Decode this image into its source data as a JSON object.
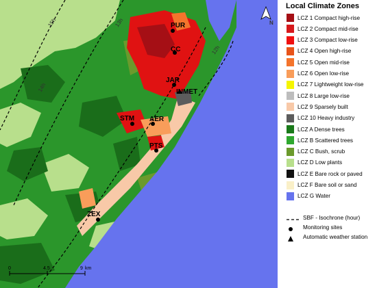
{
  "legend": {
    "title": "Local Climate Zones",
    "classes": [
      {
        "label": "LCZ 1 Compact high-rise",
        "color": "#a50f15"
      },
      {
        "label": "LCZ 2 Compact mid-rise",
        "color": "#d7191c"
      },
      {
        "label": "LCZ 3 Compact low-rise",
        "color": "#f01010"
      },
      {
        "label": "LCZ 4 Open high-rise",
        "color": "#e8541a"
      },
      {
        "label": "LCZ 5 Open mid-rise",
        "color": "#f4742c"
      },
      {
        "label": "LCZ 6 Open low-rise",
        "color": "#f99d5a"
      },
      {
        "label": "LCZ 7 Lightweight low-rise",
        "color": "#f5f500"
      },
      {
        "label": "LCZ 8 Large low-rise",
        "color": "#bdbdbd"
      },
      {
        "label": "LCZ 9 Sparsely built",
        "color": "#f8c9a8"
      },
      {
        "label": "LCZ 10 Heavy industry",
        "color": "#5c5c5c"
      },
      {
        "label": "LCZ A Dense trees",
        "color": "#1a7a1a"
      },
      {
        "label": "LCZ B Scattered trees",
        "color": "#2fa82f"
      },
      {
        "label": "LCZ C Bush, scrub",
        "color": "#6b9a2c"
      },
      {
        "label": "LCZ D Low plants",
        "color": "#b8df8c"
      },
      {
        "label": "LCZ E Bare rock or paved",
        "color": "#111111"
      },
      {
        "label": "LCZ F Bare soil or sand",
        "color": "#faf0c8"
      },
      {
        "label": "LCZ G Water",
        "color": "#6673ee"
      }
    ],
    "symbols": {
      "isochrone": "SBF - Isochrone (hour)",
      "monitoring": "Monitoring sites",
      "aws": "Automatic weather station"
    }
  },
  "map": {
    "sites": [
      "PUR",
      "CC",
      "JAR",
      "INMET",
      "STM",
      "AER",
      "PTS",
      "ZEX"
    ],
    "isochrone_labels": [
      "15h",
      "14h",
      "13h",
      "12h"
    ],
    "north": "N",
    "scale": {
      "ticks": [
        "0",
        "4.5",
        "9"
      ],
      "unit": "km"
    }
  }
}
